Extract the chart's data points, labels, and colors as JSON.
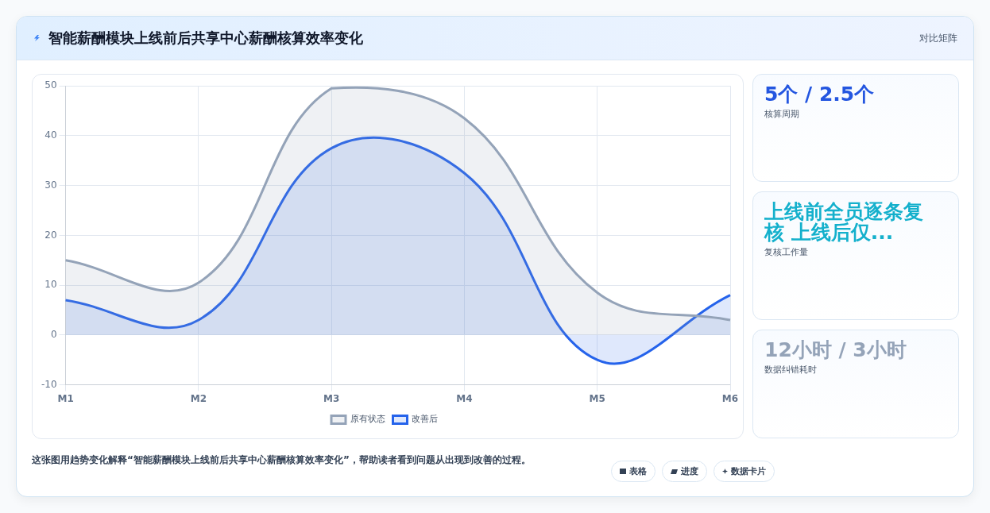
{
  "chart_data": [
    {
      "type": "area",
      "title": "智能薪酬模块上线前后共享中心薪酬核算效率变化",
      "categories": [
        "M1",
        "M2",
        "M3",
        "M4",
        "M5",
        "M6"
      ],
      "series": [
        {
          "name": "原有状态",
          "color": "#94a3b8",
          "values": [
            15,
            10.5,
            49.5,
            43.5,
            8.5,
            3
          ]
        },
        {
          "name": "改善后",
          "color": "#2563eb",
          "values": [
            7,
            3,
            37.5,
            32.5,
            -5,
            8
          ]
        }
      ],
      "ylim": [
        -10,
        50
      ],
      "yticks": [
        -10,
        0,
        10,
        20,
        30,
        40,
        50
      ],
      "grid": true,
      "legend": "bottom",
      "annotations": [
        "对比矩阵",
        "这张图用趋势变化解释“智能薪酬模块上线前后共享中心薪酬核算效率变化”，帮助读者看到问题从出现到改善的过程。",
        "表格",
        "进度",
        "数据卡片"
      ]
    },
    {
      "type": "other",
      "colors": [
        "#2456e0",
        "#14b0cc",
        "#94a3b8"
      ],
      "annotations": [
        "5个 / 2.5个",
        "核算周期",
        "上线前全员逐条复核 上线后仅...",
        "复核工作量",
        "12小时 / 3小时",
        "数据纠错耗时"
      ]
    }
  ]
}
